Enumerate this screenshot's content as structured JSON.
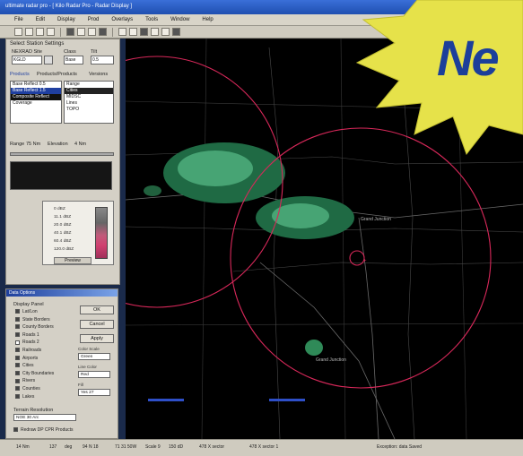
{
  "window": {
    "title": "ultimate radar pro - [ Kilo Radar Pro - Radar Display ]"
  },
  "menu": [
    "File",
    "Edit",
    "Display",
    "Prod",
    "Overlays",
    "Tools",
    "Window",
    "Help"
  ],
  "panel": {
    "title": "Select Station Settings",
    "station_label": "NEXRAD Site",
    "station_value": "KGLD",
    "class_label": "Class",
    "class_value": "Base",
    "tilt_label": "Tilt",
    "tilt_value": "0.5",
    "tabs": [
      "Products",
      "Products/Products",
      "Versions"
    ],
    "product_list": [
      "Base Reflect 0.5",
      "Base Reflect 1.5",
      "Composite Reflect",
      "Coverage"
    ],
    "product_list_selected": 1,
    "overlay_list": [
      "Range",
      "Cities",
      "MIDSC",
      "Lines",
      "TOPO"
    ],
    "overlay_list_selected": 1,
    "range_label": "Range",
    "range_value": "75 Nm",
    "elevation_label": "Elevation",
    "elevation_value": "4 Nm",
    "legend_values": [
      "0",
      "11.1",
      "20.0",
      "40.1",
      "60.4",
      "120.0"
    ],
    "legend_units": "dBZ",
    "preview_label": "Preview"
  },
  "data_options": {
    "title": "Data Options",
    "group_label": "Display Panel",
    "checks": [
      {
        "label": "Lat/Lon",
        "checked": true
      },
      {
        "label": "State Borders",
        "checked": true
      },
      {
        "label": "County Borders",
        "checked": true
      },
      {
        "label": "Roads 1",
        "checked": true
      },
      {
        "label": "Roads 2",
        "checked": false
      },
      {
        "label": "Railroads",
        "checked": true
      },
      {
        "label": "Airports",
        "checked": true
      },
      {
        "label": "Cities",
        "checked": true
      },
      {
        "label": "City Boundaries",
        "checked": true
      },
      {
        "label": "Rivers",
        "checked": true
      },
      {
        "label": "Counties",
        "checked": true
      },
      {
        "label": "Lakes",
        "checked": true
      }
    ],
    "ok_label": "OK",
    "cancel_label": "Cancel",
    "apply_label": "Apply",
    "terrain_label": "Terrain Resolution",
    "terrain_value": "NOE 30 Arc",
    "dropdowns": [
      {
        "label": "Color Scale",
        "value": "Green"
      },
      {
        "label": "Line Color",
        "value": "Red"
      },
      {
        "label": "Fill",
        "value": "Yes 27"
      }
    ],
    "footer_check": "Redraw DP CPR Products"
  },
  "status": {
    "items": [
      "14 Nm",
      "137",
      "deg",
      "94 N 18",
      "71 31 50W",
      "Scale 9",
      "150 dD",
      "478 X sector",
      "478 X sector 1",
      "Exception: data Saved"
    ]
  },
  "map_labels": [
    "Grand Junction",
    "Grand Junction"
  ],
  "badge": {
    "text": "Ne"
  },
  "colors": {
    "ring": "#d8285a",
    "echo_light": "#4fae7c",
    "echo_dark": "#1f6a44",
    "road": "#6a6a6a",
    "badge_fill": "#e6e24a",
    "badge_text": "#1c3f9a"
  }
}
